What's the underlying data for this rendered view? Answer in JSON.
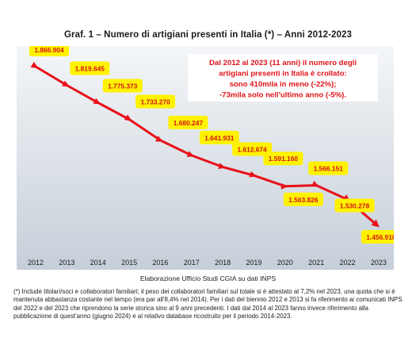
{
  "colors": {
    "line": "#e8101a",
    "callout_fill": "#fff200",
    "value_text": "#d4121a",
    "annotation_text": "#e0141a",
    "bg_top": "#f4f6f8",
    "bg_bottom": "#c6cfd9"
  },
  "header": {
    "title": "Graf. 1 – Numero di artigiani presenti in Italia (*) – Anni 2012-2023"
  },
  "chart_data": {
    "type": "line",
    "title": "Graf. 1 – Numero di artigiani presenti in Italia (*) – Anni 2012-2023",
    "xlabel": "",
    "ylabel": "",
    "grid": false,
    "legend": "none",
    "categories": [
      "2012",
      "2013",
      "2014",
      "2015",
      "2016",
      "2017",
      "2018",
      "2019",
      "2020",
      "2021",
      "2022",
      "2023"
    ],
    "series": [
      {
        "values": [
          1866904,
          1819645,
          1775373,
          1733270,
          1680247,
          1641931,
          1612674,
          1591160,
          1563826,
          1566151,
          1530278,
          1456918
        ],
        "labels": [
          "1.866.904",
          "1.819.645",
          "1.775.373",
          "1.733.270",
          "1.680.247",
          "1.641.931",
          "1.612.674",
          "1.591.160",
          "1.563.826",
          "1.566.151",
          "1.530.278",
          "1.456.918"
        ]
      }
    ],
    "annotation": [
      "Dal 2012 al 2023 (11 anni) il numero degli",
      "artigiani presenti in Italia è crollato:",
      "sono 410mila in meno (-22%);",
      "-73mila solo nell'ultimo anno (-5%)."
    ]
  },
  "footer": {
    "source": "Elaborazione Ufficio Studi CGIA su dati INPS",
    "note": "(*) Include titolari/soci e collaboratori familiari; il peso dei collaboratori familiari sul totale si è attestato al 7,2% nel 2023, una quota che si è mantenuta abbastanza costante nel tempo (era par all'8,4% nel 2014). Per i dati del biennio 2012 e 2013 si fa riferimento ai comunicati INPS del 2022 e del 2023 che riprendono la serie storica sino al 9 anni precedenti. I dati dal 2014 al 2023 fanno invece riferimento alla pubblicazione di quest'anno (giugno 2024) e al relativo database ricostruito per il periodo 2014-2023."
  }
}
